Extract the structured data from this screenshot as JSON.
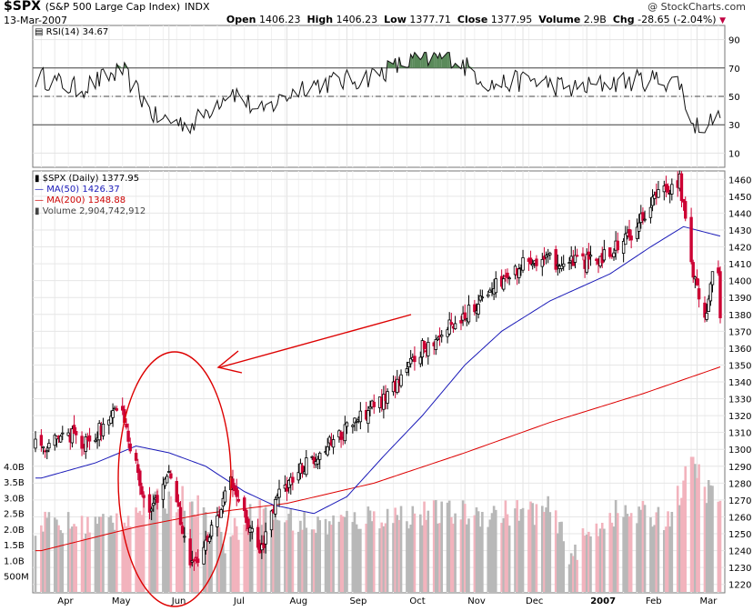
{
  "header": {
    "symbol": "$SPX",
    "name": "(S&P 500 Large Cap Index)",
    "exchange": "INDX",
    "date": "13-Mar-2007",
    "credit": "@ StockCharts.com",
    "open_label": "Open",
    "open": "1406.23",
    "high_label": "High",
    "high": "1406.23",
    "low_label": "Low",
    "low": "1377.71",
    "close_label": "Close",
    "close": "1377.95",
    "volume_label": "Volume",
    "volume": "2.9B",
    "chg_label": "Chg",
    "chg": "-28.65 (-2.04%)",
    "chg_marker": "▼"
  },
  "rsi_panel": {
    "label": "RSI(14) 34.67"
  },
  "legend": {
    "line1": "$SPX (Daily) 1377.95",
    "line2": "MA(50) 1426.37",
    "line3": "MA(200) 1348.88",
    "line4": "Volume 2,904,742,912"
  },
  "colors": {
    "ma50": "#1a1ab8",
    "ma200": "#dd0000",
    "annotation": "#dd0000",
    "vol_up": "#b8b8b8",
    "vol_down": "#f2b3bd",
    "down_candle": "#cc0033",
    "rsi_fill": "#5a8a5a"
  },
  "chart_data": [
    {
      "type": "line",
      "title": "RSI(14) 34.67",
      "ylim": [
        0,
        100
      ],
      "y_ticks": [
        10,
        30,
        50,
        70,
        90
      ],
      "reference_lines": [
        30,
        50,
        70
      ],
      "series": [
        {
          "name": "RSI(14)",
          "x": [
            "2006-03-28",
            "2006-04-15",
            "2006-05-08",
            "2006-05-25",
            "2006-06-13",
            "2006-07-03",
            "2006-07-18",
            "2006-08-10",
            "2006-09-08",
            "2006-10-05",
            "2006-10-25",
            "2006-11-15",
            "2006-12-05",
            "2006-12-27",
            "2007-01-17",
            "2007-02-06",
            "2007-02-20",
            "2007-02-27",
            "2007-03-13"
          ],
          "values": [
            63,
            55,
            68,
            35,
            30,
            55,
            38,
            58,
            62,
            75,
            78,
            58,
            62,
            55,
            60,
            62,
            60,
            28,
            34.67
          ]
        }
      ]
    },
    {
      "type": "candlestick",
      "title": "$SPX (Daily) 1377.95",
      "ylim": [
        1215,
        1465
      ],
      "y_ticks": [
        1220,
        1230,
        1240,
        1250,
        1260,
        1270,
        1280,
        1290,
        1300,
        1310,
        1320,
        1330,
        1340,
        1350,
        1360,
        1370,
        1380,
        1390,
        1400,
        1410,
        1420,
        1430,
        1440,
        1450,
        1460
      ],
      "x_tick_labels": [
        "Apr",
        "May",
        "Jun",
        "Jul",
        "Aug",
        "Sep",
        "Oct",
        "Nov",
        "Dec",
        "2007",
        "Feb",
        "Mar"
      ],
      "close_anchors": {
        "x": [
          "2006-03-27",
          "2006-04-10",
          "2006-04-20",
          "2006-05-01",
          "2006-05-08",
          "2006-05-12",
          "2006-05-22",
          "2006-06-01",
          "2006-06-13",
          "2006-06-20",
          "2006-07-03",
          "2006-07-18",
          "2006-07-28",
          "2006-08-15",
          "2006-09-01",
          "2006-09-20",
          "2006-10-10",
          "2006-10-30",
          "2006-11-20",
          "2006-12-05",
          "2006-12-22",
          "2007-01-08",
          "2007-01-25",
          "2007-02-06",
          "2007-02-20",
          "2007-02-27",
          "2007-03-01",
          "2007-03-05",
          "2007-03-08",
          "2007-03-12",
          "2007-03-13"
        ],
        "values": [
          1302,
          1309,
          1303,
          1318,
          1325,
          1301,
          1262,
          1288,
          1230,
          1244,
          1280,
          1238,
          1275,
          1296,
          1313,
          1330,
          1360,
          1378,
          1400,
          1414,
          1410,
          1412,
          1426,
          1448,
          1460,
          1400,
          1396,
          1374,
          1402,
          1406,
          1377.95
        ]
      },
      "series": [
        {
          "name": "MA(50)",
          "value_last": 1426.37,
          "x": [
            "2006-03-27",
            "2006-04-24",
            "2006-05-15",
            "2006-06-01",
            "2006-06-20",
            "2006-07-10",
            "2006-07-25",
            "2006-08-15",
            "2006-09-01",
            "2006-09-20",
            "2006-10-10",
            "2006-11-01",
            "2006-11-20",
            "2006-12-15",
            "2007-01-15",
            "2007-02-05",
            "2007-02-22",
            "2007-03-13"
          ],
          "values": [
            1283,
            1292,
            1302,
            1298,
            1290,
            1275,
            1267,
            1262,
            1272,
            1296,
            1320,
            1350,
            1370,
            1388,
            1404,
            1420,
            1432,
            1426.37
          ]
        },
        {
          "name": "MA(200)",
          "value_last": 1348.88,
          "x": [
            "2006-03-27",
            "2006-05-15",
            "2006-06-20",
            "2006-08-01",
            "2006-09-15",
            "2006-11-01",
            "2006-12-15",
            "2007-02-01",
            "2007-03-13"
          ],
          "values": [
            1240,
            1254,
            1262,
            1268,
            1280,
            1298,
            1316,
            1333,
            1348.88
          ]
        }
      ]
    },
    {
      "type": "bar",
      "title": "Volume 2,904,742,912",
      "ylabel": "Volume",
      "y_ticks": [
        "500M",
        "1.0B",
        "1.5B",
        "2.0B",
        "2.5B",
        "3.0B",
        "3.5B",
        "4.0B"
      ],
      "ylim": [
        0,
        4.4
      ],
      "units": "billions",
      "x": [
        "2006-03-27",
        "2006-04-20",
        "2006-05-10",
        "2006-05-22",
        "2006-06-13",
        "2006-06-20",
        "2006-06-30",
        "2006-07-15",
        "2006-08-15",
        "2006-09-15",
        "2006-10-15",
        "2006-11-15",
        "2006-12-15",
        "2006-12-26",
        "2007-01-15",
        "2007-02-15",
        "2007-02-27",
        "2007-03-05",
        "2007-03-13"
      ],
      "values": [
        2.2,
        2.1,
        2.4,
        2.8,
        3.0,
        2.4,
        1.6,
        2.6,
        2.1,
        2.4,
        2.5,
        2.5,
        2.6,
        1.2,
        2.5,
        2.4,
        4.2,
        3.3,
        2.9
      ]
    }
  ],
  "annotation": {
    "shape": "ellipse",
    "arrow": "pointing at circled region"
  }
}
